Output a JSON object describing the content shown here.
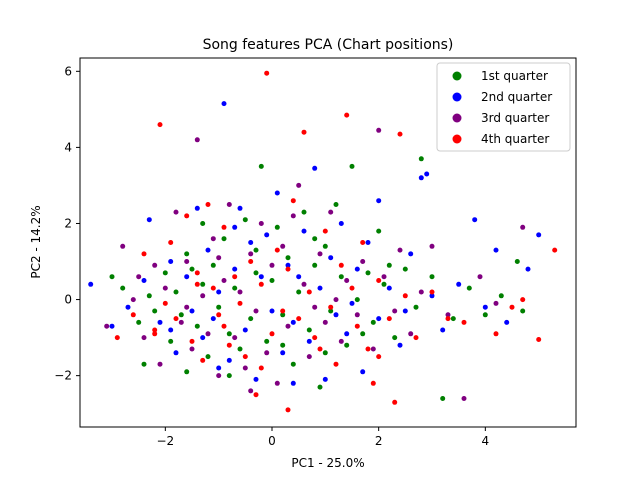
{
  "chart_data": {
    "type": "scatter",
    "title": "Song features PCA (Chart positions)",
    "xlabel": "PC1 - 25.0%",
    "ylabel": "PC2 - 14.2%",
    "xlim": [
      -3.6,
      5.7
    ],
    "ylim": [
      -3.35,
      6.35
    ],
    "x_ticks": [
      -2,
      0,
      2,
      4
    ],
    "y_ticks": [
      -2,
      0,
      2,
      4,
      6
    ],
    "grid": false,
    "legend_position": "top-right",
    "series": [
      {
        "name": "1st quarter",
        "color": "#008000",
        "points": [
          [
            -3.0,
            0.6
          ],
          [
            -2.8,
            0.3
          ],
          [
            -2.5,
            -0.6
          ],
          [
            -2.3,
            0.1
          ],
          [
            -2.2,
            -0.3
          ],
          [
            -2.0,
            0.7
          ],
          [
            -1.9,
            -1.1
          ],
          [
            -1.8,
            0.2
          ],
          [
            -1.7,
            -0.4
          ],
          [
            -1.6,
            1.2
          ],
          [
            -1.5,
            0.8
          ],
          [
            -1.4,
            -0.7
          ],
          [
            -1.3,
            0.4
          ],
          [
            -1.2,
            -1.5
          ],
          [
            -1.1,
            0.9
          ],
          [
            -1.0,
            -0.2
          ],
          [
            -0.9,
            1.6
          ],
          [
            -0.8,
            -0.9
          ],
          [
            -0.7,
            0.3
          ],
          [
            -0.6,
            -1.3
          ],
          [
            -0.5,
            2.1
          ],
          [
            -0.4,
            -0.5
          ],
          [
            -0.3,
            0.7
          ],
          [
            -0.2,
            3.5
          ],
          [
            -0.1,
            -1.1
          ],
          [
            0.0,
            0.5
          ],
          [
            0.1,
            1.9
          ],
          [
            0.2,
            -0.4
          ],
          [
            0.3,
            1.1
          ],
          [
            0.4,
            -1.7
          ],
          [
            0.5,
            0.2
          ],
          [
            0.6,
            2.3
          ],
          [
            0.7,
            -0.8
          ],
          [
            0.8,
            0.9
          ],
          [
            0.9,
            -2.3
          ],
          [
            1.0,
            1.4
          ],
          [
            1.1,
            -0.3
          ],
          [
            1.2,
            2.5
          ],
          [
            1.3,
            0.6
          ],
          [
            1.4,
            -1.2
          ],
          [
            1.5,
            3.5
          ],
          [
            1.6,
            0.0
          ],
          [
            1.8,
            0.7
          ],
          [
            1.9,
            -0.6
          ],
          [
            2.0,
            1.8
          ],
          [
            2.1,
            0.4
          ],
          [
            2.3,
            -1.0
          ],
          [
            2.5,
            0.8
          ],
          [
            2.7,
            -0.2
          ],
          [
            2.8,
            3.7
          ],
          [
            3.0,
            0.6
          ],
          [
            3.2,
            -2.6
          ],
          [
            3.4,
            -0.5
          ],
          [
            3.7,
            0.3
          ],
          [
            4.0,
            -0.4
          ],
          [
            4.3,
            0.1
          ],
          [
            4.6,
            1.0
          ],
          [
            4.7,
            -0.3
          ],
          [
            -2.4,
            -1.7
          ],
          [
            -1.6,
            -1.9
          ],
          [
            -0.8,
            -2.0
          ],
          [
            0.2,
            -1.2
          ],
          [
            1.0,
            -1.4
          ],
          [
            1.7,
            -0.9
          ],
          [
            2.2,
            0.9
          ],
          [
            -1.3,
            2.0
          ],
          [
            -0.3,
            1.3
          ],
          [
            0.8,
            1.6
          ]
        ]
      },
      {
        "name": "2nd quarter",
        "color": "#0000ff",
        "points": [
          [
            -3.4,
            0.4
          ],
          [
            -3.0,
            -0.7
          ],
          [
            -2.7,
            -0.2
          ],
          [
            -2.4,
            0.5
          ],
          [
            -2.3,
            2.1
          ],
          [
            -2.1,
            -0.6
          ],
          [
            -1.9,
            1.0
          ],
          [
            -1.8,
            -1.4
          ],
          [
            -1.6,
            0.6
          ],
          [
            -1.5,
            -0.3
          ],
          [
            -1.4,
            2.4
          ],
          [
            -1.3,
            -1.0
          ],
          [
            -1.2,
            1.3
          ],
          [
            -1.1,
            -0.5
          ],
          [
            -1.0,
            0.2
          ],
          [
            -0.9,
            5.15
          ],
          [
            -0.8,
            -1.6
          ],
          [
            -0.7,
            0.8
          ],
          [
            -0.6,
            2.4
          ],
          [
            -0.5,
            -0.8
          ],
          [
            -0.4,
            1.5
          ],
          [
            -0.3,
            -2.1
          ],
          [
            -0.2,
            0.6
          ],
          [
            -0.1,
            1.7
          ],
          [
            0.0,
            -0.3
          ],
          [
            0.1,
            2.8
          ],
          [
            0.2,
            -1.4
          ],
          [
            0.3,
            0.9
          ],
          [
            0.4,
            -0.6
          ],
          [
            0.6,
            1.8
          ],
          [
            0.7,
            -1.1
          ],
          [
            0.8,
            3.45
          ],
          [
            0.9,
            0.3
          ],
          [
            1.0,
            -2.1
          ],
          [
            1.1,
            1.1
          ],
          [
            1.2,
            -0.4
          ],
          [
            1.3,
            2.0
          ],
          [
            1.4,
            -0.9
          ],
          [
            1.6,
            0.8
          ],
          [
            1.7,
            -1.9
          ],
          [
            1.8,
            1.5
          ],
          [
            2.0,
            -0.5
          ],
          [
            2.0,
            2.6
          ],
          [
            2.2,
            0.3
          ],
          [
            2.4,
            -1.2
          ],
          [
            2.6,
            1.2
          ],
          [
            2.8,
            3.2
          ],
          [
            2.9,
            3.3
          ],
          [
            3.0,
            0.1
          ],
          [
            3.2,
            -0.8
          ],
          [
            3.5,
            0.4
          ],
          [
            3.8,
            2.1
          ],
          [
            4.0,
            -0.2
          ],
          [
            4.2,
            1.3
          ],
          [
            4.4,
            -0.6
          ],
          [
            4.8,
            0.8
          ],
          [
            5.0,
            1.7
          ],
          [
            -1.9,
            -0.8
          ],
          [
            -1.0,
            -1.8
          ],
          [
            0.4,
            -2.2
          ],
          [
            1.5,
            -0.1
          ],
          [
            2.5,
            -0.3
          ],
          [
            -0.7,
            1.9
          ],
          [
            0.5,
            0.6
          ]
        ]
      },
      {
        "name": "3rd quarter",
        "color": "#800080",
        "points": [
          [
            -3.1,
            -0.7
          ],
          [
            -2.8,
            1.4
          ],
          [
            -2.6,
            0.0
          ],
          [
            -2.4,
            -1.0
          ],
          [
            -2.2,
            0.9
          ],
          [
            -2.1,
            -1.7
          ],
          [
            -2.0,
            0.3
          ],
          [
            -1.8,
            2.3
          ],
          [
            -1.7,
            -0.6
          ],
          [
            -1.6,
            1.0
          ],
          [
            -1.5,
            -1.3
          ],
          [
            -1.4,
            4.2
          ],
          [
            -1.3,
            0.1
          ],
          [
            -1.2,
            -0.9
          ],
          [
            -1.1,
            1.6
          ],
          [
            -1.0,
            -2.0
          ],
          [
            -0.9,
            0.5
          ],
          [
            -0.8,
            2.5
          ],
          [
            -0.7,
            -1.0
          ],
          [
            -0.6,
            0.2
          ],
          [
            -0.5,
            -1.8
          ],
          [
            -0.4,
            1.2
          ],
          [
            -0.3,
            -0.3
          ],
          [
            -0.2,
            2.0
          ],
          [
            -0.1,
            -1.4
          ],
          [
            0.0,
            0.9
          ],
          [
            0.1,
            -2.2
          ],
          [
            0.2,
            1.4
          ],
          [
            0.3,
            -0.7
          ],
          [
            0.5,
            3.0
          ],
          [
            0.6,
            0.4
          ],
          [
            0.7,
            -1.5
          ],
          [
            0.9,
            1.2
          ],
          [
            1.0,
            -0.6
          ],
          [
            1.1,
            2.3
          ],
          [
            1.3,
            -1.1
          ],
          [
            1.4,
            0.5
          ],
          [
            1.6,
            -0.4
          ],
          [
            1.7,
            1.0
          ],
          [
            1.9,
            -1.3
          ],
          [
            2.0,
            4.45
          ],
          [
            2.1,
            0.6
          ],
          [
            2.3,
            -0.3
          ],
          [
            2.4,
            1.3
          ],
          [
            2.6,
            -0.9
          ],
          [
            2.8,
            0.2
          ],
          [
            3.0,
            1.4
          ],
          [
            3.3,
            -0.4
          ],
          [
            3.6,
            -2.6
          ],
          [
            3.9,
            0.6
          ],
          [
            4.2,
            -0.1
          ],
          [
            4.7,
            1.9
          ],
          [
            -2.5,
            0.6
          ],
          [
            -1.6,
            -0.2
          ],
          [
            -0.4,
            -2.4
          ],
          [
            0.4,
            2.2
          ],
          [
            1.2,
            0.0
          ],
          [
            -1.0,
            1.1
          ],
          [
            0.8,
            -0.2
          ]
        ]
      },
      {
        "name": "4th quarter",
        "color": "#ff0000",
        "points": [
          [
            -2.9,
            -1.0
          ],
          [
            -2.6,
            -0.4
          ],
          [
            -2.4,
            1.2
          ],
          [
            -2.2,
            -0.8
          ],
          [
            -2.1,
            4.6
          ],
          [
            -2.0,
            -0.1
          ],
          [
            -1.9,
            1.5
          ],
          [
            -1.8,
            -0.5
          ],
          [
            -1.6,
            2.2
          ],
          [
            -1.5,
            -1.1
          ],
          [
            -1.4,
            0.7
          ],
          [
            -1.3,
            -1.6
          ],
          [
            -1.2,
            2.5
          ],
          [
            -1.1,
            0.3
          ],
          [
            -1.0,
            -0.4
          ],
          [
            -0.9,
            1.9
          ],
          [
            -0.8,
            -1.2
          ],
          [
            -0.7,
            0.6
          ],
          [
            -0.6,
            -0.1
          ],
          [
            -0.5,
            -1.5
          ],
          [
            -0.4,
            1.0
          ],
          [
            -0.3,
            -2.5
          ],
          [
            -0.2,
            0.4
          ],
          [
            -0.1,
            5.95
          ],
          [
            0.0,
            -0.9
          ],
          [
            0.1,
            1.3
          ],
          [
            0.2,
            -0.3
          ],
          [
            0.3,
            -2.9
          ],
          [
            0.4,
            2.6
          ],
          [
            0.5,
            -0.5
          ],
          [
            0.6,
            4.4
          ],
          [
            0.7,
            0.2
          ],
          [
            0.8,
            -1.0
          ],
          [
            1.0,
            1.8
          ],
          [
            1.1,
            -0.2
          ],
          [
            1.2,
            -1.7
          ],
          [
            1.3,
            0.9
          ],
          [
            1.4,
            4.85
          ],
          [
            1.5,
            0.3
          ],
          [
            1.6,
            -0.7
          ],
          [
            1.7,
            1.5
          ],
          [
            1.8,
            -1.3
          ],
          [
            1.9,
            -2.2
          ],
          [
            2.0,
            0.5
          ],
          [
            2.2,
            -0.5
          ],
          [
            2.3,
            -2.7
          ],
          [
            2.4,
            4.35
          ],
          [
            2.5,
            0.1
          ],
          [
            2.7,
            -1.0
          ],
          [
            3.0,
            0.2
          ],
          [
            3.3,
            -0.5
          ],
          [
            3.6,
            -0.6
          ],
          [
            4.2,
            -0.9
          ],
          [
            4.5,
            -0.2
          ],
          [
            4.7,
            0.0
          ],
          [
            5.0,
            -1.05
          ],
          [
            5.3,
            1.3
          ],
          [
            -2.2,
            -0.9
          ],
          [
            -1.4,
            0.4
          ],
          [
            -0.2,
            -1.8
          ],
          [
            0.9,
            -1.3
          ],
          [
            2.0,
            -1.5
          ],
          [
            -0.9,
            -0.7
          ],
          [
            0.3,
            0.8
          ]
        ]
      }
    ]
  }
}
